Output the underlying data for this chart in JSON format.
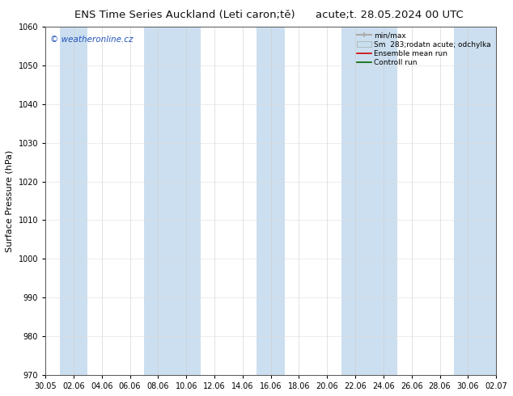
{
  "title_left": "ENS Time Series Auckland (Leti caron;tě)",
  "title_right": "acute;t. 28.05.2024 00 UTC",
  "ylabel": "Surface Pressure (hPa)",
  "ylim": [
    970,
    1060
  ],
  "yticks": [
    970,
    980,
    990,
    1000,
    1010,
    1020,
    1030,
    1040,
    1050,
    1060
  ],
  "xtick_labels": [
    "30.05",
    "02.06",
    "04.06",
    "06.06",
    "08.06",
    "10.06",
    "12.06",
    "14.06",
    "16.06",
    "18.06",
    "20.06",
    "22.06",
    "24.06",
    "26.06",
    "28.06",
    "30.06",
    "02.07"
  ],
  "background_color": "#ffffff",
  "band_color": "#ccdff0",
  "watermark": "© weatheronline.cz",
  "legend_items": [
    {
      "label": "min/max",
      "color": "#aaaaaa",
      "lw": 1.5
    },
    {
      "label": "Sm  283;rodatn acute; odchylka",
      "color": "#c8dff0",
      "lw": 8
    },
    {
      "label": "Ensemble mean run",
      "color": "#cc0000",
      "lw": 1.2
    },
    {
      "label": "Controll run",
      "color": "#006600",
      "lw": 1.2
    }
  ],
  "title_fontsize": 9.5,
  "tick_fontsize": 7,
  "ylabel_fontsize": 8
}
